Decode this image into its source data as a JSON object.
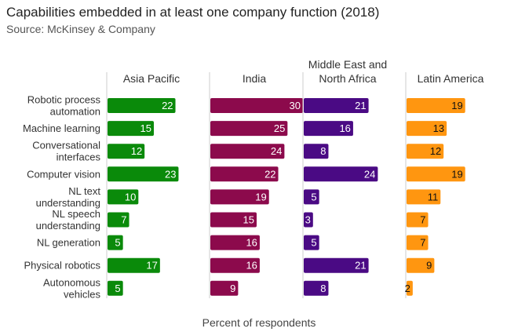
{
  "chart_data": {
    "type": "bar",
    "orientation": "horizontal",
    "title": "Capabilities embedded in at least one company function (2018)",
    "subtitle": "Source: McKinsey & Company",
    "xlabel": "Percent of respondents",
    "ylabel": "",
    "xlim": [
      0,
      30
    ],
    "grid": false,
    "legend": "none",
    "categories": [
      [
        "Robotic process",
        "automation"
      ],
      [
        "Machine learning"
      ],
      [
        "Conversational",
        "interfaces"
      ],
      [
        "Computer vision"
      ],
      [
        "NL text",
        "understanding"
      ],
      [
        "NL speech",
        "understanding"
      ],
      [
        "NL generation"
      ],
      [
        "Physical robotics"
      ],
      [
        "Autonomous",
        "vehicles"
      ]
    ],
    "series": [
      {
        "name": [
          "Asia Pacific"
        ],
        "color": "#0a8a0a",
        "values": [
          22,
          15,
          12,
          23,
          10,
          7,
          5,
          17,
          5
        ]
      },
      {
        "name": [
          "India"
        ],
        "color": "#8c0a4c",
        "values": [
          30,
          25,
          24,
          22,
          19,
          15,
          16,
          16,
          9
        ]
      },
      {
        "name": [
          "Middle East and",
          "North Africa"
        ],
        "color": "#4a0a84",
        "values": [
          21,
          16,
          8,
          24,
          5,
          3,
          5,
          21,
          8
        ]
      },
      {
        "name": [
          "Latin America"
        ],
        "color": "#ff9610",
        "values": [
          19,
          13,
          12,
          19,
          11,
          7,
          7,
          9,
          2
        ]
      }
    ]
  }
}
